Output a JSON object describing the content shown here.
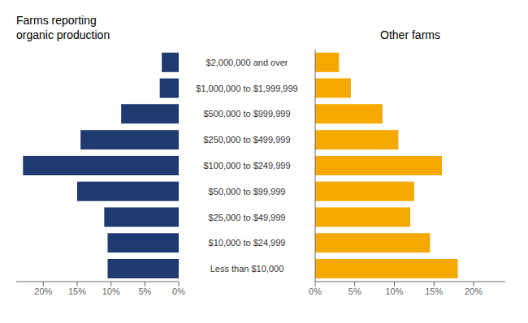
{
  "chart_data": [
    {
      "type": "bar",
      "orientation": "horizontal",
      "title": "Farms reporting\norganic production",
      "categories": [
        "$2,000,000 and over",
        "$1,000,000 to $1,999,999",
        "$500,000 to $999,999",
        "$250,000 to $499,999",
        "$100,000 to $249,999",
        "$50,000 to $99,999",
        "$25,000 to $49,999",
        "$10,000 to $24,999",
        "Less than $10,000"
      ],
      "values": [
        2.5,
        2.8,
        8.5,
        14.5,
        23.0,
        15.0,
        11.0,
        10.5,
        10.5
      ],
      "color": "#1f3a6e",
      "xlim": [
        24,
        0
      ],
      "xticks": [
        {
          "value": 0,
          "label": "0%"
        },
        {
          "value": 5,
          "label": "5%"
        },
        {
          "value": 10,
          "label": "10%"
        },
        {
          "value": 15,
          "label": "15%"
        },
        {
          "value": 20,
          "label": "20%"
        }
      ],
      "grid": false,
      "tick_labels": "x"
    },
    {
      "type": "bar",
      "orientation": "horizontal",
      "title": "Other farms",
      "categories": [
        "$2,000,000 and over",
        "$1,000,000 to $1,999,999",
        "$500,000 to $999,999",
        "$250,000 to $499,999",
        "$100,000 to $249,999",
        "$50,000 to $99,999",
        "$25,000 to $49,999",
        "$10,000 to $24,999",
        "Less than $10,000"
      ],
      "values": [
        3.0,
        4.5,
        8.5,
        10.5,
        16.0,
        12.5,
        12.0,
        14.5,
        18.0
      ],
      "color": "#f5a800",
      "xlim": [
        0,
        24
      ],
      "xticks": [
        {
          "value": 0,
          "label": "0%"
        },
        {
          "value": 5,
          "label": "5%"
        },
        {
          "value": 10,
          "label": "10%"
        },
        {
          "value": 15,
          "label": "15%"
        },
        {
          "value": 20,
          "label": "20%"
        }
      ],
      "grid": false
    }
  ]
}
